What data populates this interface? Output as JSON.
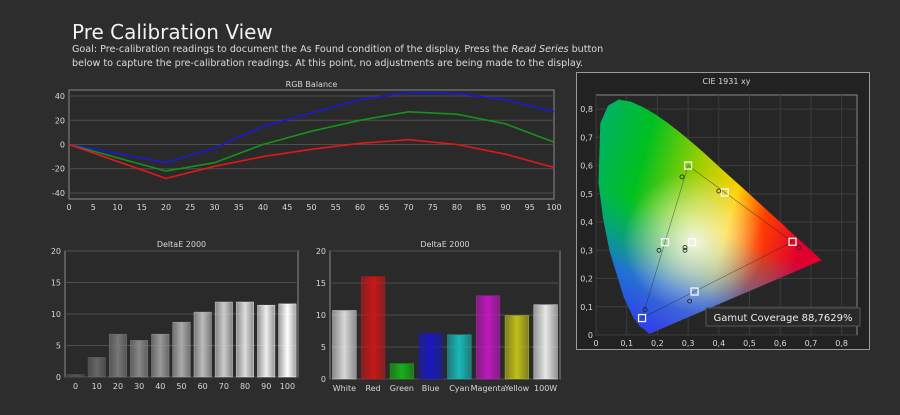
{
  "page": {
    "title": "Pre Calibration View",
    "goal_prefix": "Goal: Pre-calibration readings to document the As Found condition of the display. Press the ",
    "goal_button": "Read Series",
    "goal_suffix": " button below to capture the pre-calibration readings. At this point, no adjustments are being made to the display."
  },
  "chart_data": [
    {
      "id": "rgb",
      "type": "line",
      "title": "RGB Balance",
      "x": [
        0,
        20,
        30,
        40,
        50,
        60,
        70,
        80,
        90,
        100
      ],
      "xticks": [
        0,
        5,
        10,
        15,
        20,
        25,
        30,
        35,
        40,
        45,
        50,
        55,
        60,
        65,
        70,
        75,
        80,
        85,
        90,
        95,
        100
      ],
      "yticks": [
        40,
        20,
        0,
        -20,
        -40
      ],
      "ylim": [
        -45,
        45
      ],
      "series": [
        {
          "color": "#1a1ad6",
          "values": [
            0,
            -15,
            -3,
            15,
            26,
            37,
            43,
            42,
            37,
            27
          ]
        },
        {
          "color": "#15931b",
          "values": [
            0,
            -22,
            -15,
            0,
            11,
            20,
            27,
            25,
            17,
            2
          ]
        },
        {
          "color": "#e01818",
          "values": [
            0,
            -28,
            -18,
            -10,
            -4,
            1,
            4,
            0,
            -8,
            -19
          ]
        }
      ]
    },
    {
      "id": "deltae_gray",
      "type": "bar",
      "title": "DeltaE 2000",
      "categories": [
        "0",
        "10",
        "20",
        "30",
        "40",
        "50",
        "60",
        "70",
        "80",
        "90",
        "100"
      ],
      "values": [
        0.4,
        3.1,
        6.8,
        5.8,
        6.8,
        8.7,
        10.3,
        11.9,
        11.9,
        11.4,
        11.6
      ],
      "yticks": [
        20,
        15,
        10,
        5,
        0
      ],
      "ylim": [
        0,
        20
      ]
    },
    {
      "id": "deltae_color",
      "type": "bar",
      "title": "DeltaE 2000",
      "categories": [
        "White",
        "Red",
        "Green",
        "Blue",
        "Cyan",
        "Magenta",
        "Yellow",
        "100W"
      ],
      "values": [
        10.7,
        16.0,
        2.4,
        7.1,
        6.9,
        13.0,
        9.9,
        11.6
      ],
      "colors": [
        "#d8d8d8",
        "#c81818",
        "#18b018",
        "#1818c0",
        "#18b8b8",
        "#c018c0",
        "#c0c018",
        "#e8e8e8"
      ],
      "yticks": [
        20,
        15,
        10,
        5,
        0
      ],
      "ylim": [
        0,
        20
      ]
    },
    {
      "id": "cie",
      "type": "scatter",
      "title": "CIE 1931 xy",
      "xticks": [
        "0",
        "0,1",
        "0,2",
        "0,3",
        "0,4",
        "0,5",
        "0,6",
        "0,7",
        "0,8"
      ],
      "yticks": [
        "0,8",
        "0,7",
        "0,6",
        "0,5",
        "0,4",
        "0,3",
        "0,2",
        "0,1",
        "0"
      ],
      "xlim": [
        0,
        0.85
      ],
      "ylim": [
        0,
        0.85
      ],
      "targets": [
        [
          0.64,
          0.33
        ],
        [
          0.3,
          0.6
        ],
        [
          0.15,
          0.06
        ],
        [
          0.225,
          0.329
        ],
        [
          0.321,
          0.154
        ],
        [
          0.419,
          0.505
        ],
        [
          0.3127,
          0.329
        ]
      ],
      "measured": [
        [
          0.66,
          0.31
        ],
        [
          0.28,
          0.56
        ],
        [
          0.16,
          0.09
        ],
        [
          0.205,
          0.3
        ],
        [
          0.305,
          0.12
        ],
        [
          0.4,
          0.51
        ],
        [
          0.29,
          0.3
        ],
        [
          0.29,
          0.31
        ]
      ],
      "gamut_label": "Gamut Coverage 88,7629%"
    }
  ]
}
